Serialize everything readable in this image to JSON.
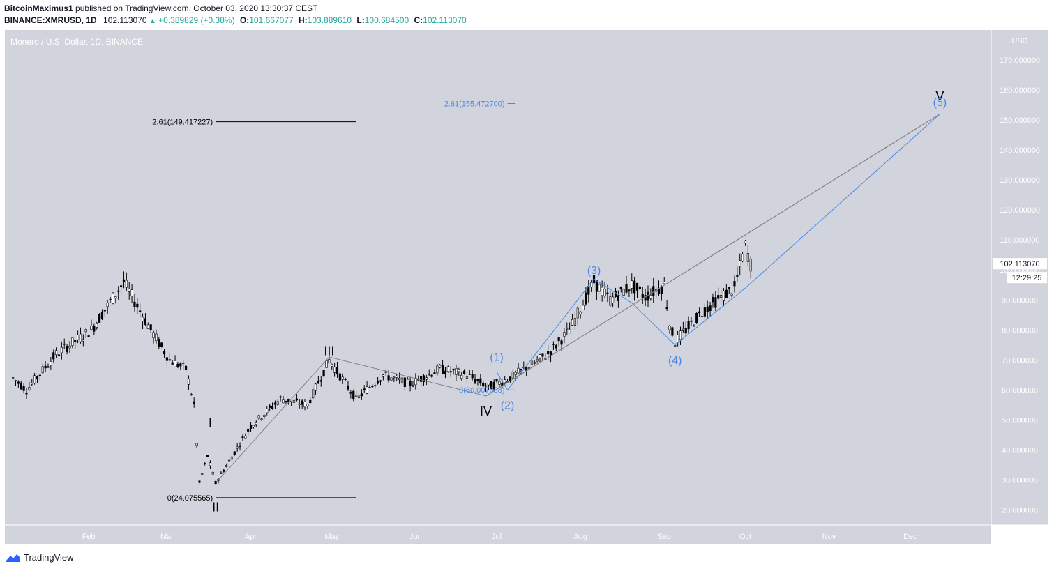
{
  "header": {
    "author": "BitcoinMaximus1",
    "published_text": "published on TradingView.com, October 03, 2020 13:30:37 CEST",
    "symbol": "BINANCE:XMRUSD, 1D",
    "last": "102.113070",
    "change": "+0.389829 (+0.38%)",
    "o_label": "O:",
    "o": "101.667077",
    "h_label": "H:",
    "h": "103.889610",
    "l_label": "L:",
    "l": "100.684500",
    "c_label": "C:",
    "c": "102.113070"
  },
  "chart": {
    "title": "Monero / U.S. Dollar, 1D, BINANCE",
    "currency": "USD",
    "price_label": "102.113070",
    "countdown": "12:29:25"
  },
  "footer": {
    "brand": "TradingView"
  },
  "colors": {
    "plot_bg": "#d1d4dc",
    "candle": "#000000",
    "blue": "#4a86e8",
    "grey": "#808080"
  },
  "chart_data": {
    "type": "candlestick",
    "y_axis": {
      "min": 15,
      "max": 180,
      "ticks": [
        "170.000000",
        "160.000000",
        "150.000000",
        "140.000000",
        "130.000000",
        "120.000000",
        "110.000000",
        "100.000000",
        "90.000000",
        "80.000000",
        "70.000000",
        "60.000000",
        "50.000000",
        "40.000000",
        "30.000000",
        "20.000000"
      ],
      "tick_values": [
        170,
        160,
        150,
        140,
        130,
        120,
        110,
        100,
        90,
        80,
        70,
        60,
        50,
        40,
        30,
        20
      ]
    },
    "x_axis": {
      "labels": [
        "Feb",
        "Mar",
        "Apr",
        "May",
        "Jun",
        "Jul",
        "Aug",
        "Sep",
        "Oct",
        "Nov",
        "Dec"
      ],
      "dates": [
        "2020-02-01",
        "2020-03-01",
        "2020-04-01",
        "2020-05-01",
        "2020-06-01",
        "2020-07-01",
        "2020-08-01",
        "2020-09-01",
        "2020-10-01",
        "2020-11-01",
        "2020-12-01"
      ]
    },
    "price_anchors": [
      {
        "date": "2020-01-04",
        "price": 64
      },
      {
        "date": "2020-01-09",
        "price": 60
      },
      {
        "date": "2020-01-20",
        "price": 72
      },
      {
        "date": "2020-02-02",
        "price": 80
      },
      {
        "date": "2020-02-14",
        "price": 96
      },
      {
        "date": "2020-02-24",
        "price": 80
      },
      {
        "date": "2020-03-02",
        "price": 70
      },
      {
        "date": "2020-03-08",
        "price": 67
      },
      {
        "date": "2020-03-11",
        "price": 55
      },
      {
        "date": "2020-03-13",
        "price": 29
      },
      {
        "date": "2020-03-16",
        "price": 38
      },
      {
        "date": "2020-03-19",
        "price": 29
      },
      {
        "date": "2020-04-01",
        "price": 48
      },
      {
        "date": "2020-04-12",
        "price": 57
      },
      {
        "date": "2020-04-22",
        "price": 55
      },
      {
        "date": "2020-04-30",
        "price": 70
      },
      {
        "date": "2020-05-10",
        "price": 57
      },
      {
        "date": "2020-05-20",
        "price": 65
      },
      {
        "date": "2020-05-30",
        "price": 62
      },
      {
        "date": "2020-06-10",
        "price": 67
      },
      {
        "date": "2020-06-20",
        "price": 65
      },
      {
        "date": "2020-06-28",
        "price": 61
      },
      {
        "date": "2020-07-06",
        "price": 64
      },
      {
        "date": "2020-07-20",
        "price": 72
      },
      {
        "date": "2020-07-28",
        "price": 80
      },
      {
        "date": "2020-08-06",
        "price": 96
      },
      {
        "date": "2020-08-12",
        "price": 90
      },
      {
        "date": "2020-08-20",
        "price": 95
      },
      {
        "date": "2020-08-25",
        "price": 91
      },
      {
        "date": "2020-09-01",
        "price": 95
      },
      {
        "date": "2020-09-03",
        "price": 82
      },
      {
        "date": "2020-09-05",
        "price": 76
      },
      {
        "date": "2020-09-15",
        "price": 86
      },
      {
        "date": "2020-09-22",
        "price": 91
      },
      {
        "date": "2020-09-27",
        "price": 94
      },
      {
        "date": "2020-10-01",
        "price": 108
      },
      {
        "date": "2020-10-03",
        "price": 102
      }
    ],
    "lines": [
      {
        "name": "fib-black-level-261",
        "color": "#000000",
        "points": [
          {
            "date": "2020-03-19",
            "price": 149.417227
          },
          {
            "date": "2020-05-10",
            "price": 149.417227
          }
        ]
      },
      {
        "name": "fib-black-level-0",
        "color": "#000000",
        "points": [
          {
            "date": "2020-03-19",
            "price": 24.075565
          },
          {
            "date": "2020-05-10",
            "price": 24.075565
          }
        ]
      },
      {
        "name": "fib-blue-level-261",
        "color": "#4a86e8",
        "points": [
          {
            "date": "2020-07-05",
            "price": 155.4727
          },
          {
            "date": "2020-07-08",
            "price": 155.4727
          }
        ]
      },
      {
        "name": "fib-blue-level-0",
        "color": "#4a86e8",
        "points": [
          {
            "date": "2020-07-05",
            "price": 60.007638
          },
          {
            "date": "2020-07-08",
            "price": 60.007638
          }
        ]
      },
      {
        "name": "wave-path-grey-1",
        "color": "#808080",
        "points": [
          {
            "date": "2020-03-19",
            "price": 29
          },
          {
            "date": "2020-04-30",
            "price": 71
          },
          {
            "date": "2020-06-27",
            "price": 58
          },
          {
            "date": "2020-12-12",
            "price": 152
          }
        ]
      },
      {
        "name": "wave-path-grey-2",
        "color": "#808080",
        "points": [
          {
            "date": "2020-06-27",
            "price": 58
          },
          {
            "date": "2020-12-12",
            "price": 152
          }
        ]
      },
      {
        "name": "wave-path-blue",
        "color": "#4a86e8",
        "points": [
          {
            "date": "2020-07-01",
            "price": 66
          },
          {
            "date": "2020-07-05",
            "price": 60
          },
          {
            "date": "2020-08-06",
            "price": 97
          },
          {
            "date": "2020-08-20",
            "price": 89
          },
          {
            "date": "2020-09-05",
            "price": 75
          },
          {
            "date": "2020-10-01",
            "price": 94
          },
          {
            "date": "2020-12-12",
            "price": 152
          }
        ]
      }
    ],
    "annotations": [
      {
        "text": "2.61(149.417227)",
        "date": "2020-03-19",
        "price": 149.417227,
        "color": "#000000",
        "size": 11,
        "anchor": "end",
        "dx": -4
      },
      {
        "text": "0(24.075565)",
        "date": "2020-03-19",
        "price": 24.075565,
        "color": "#000000",
        "size": 11,
        "anchor": "end",
        "dx": -4
      },
      {
        "text": "2.61(155.472700)",
        "date": "2020-07-05",
        "price": 155.4727,
        "color": "#4a86e8",
        "size": 11,
        "anchor": "end",
        "dx": -4
      },
      {
        "text": "0(60.007638)",
        "date": "2020-07-05",
        "price": 60.007638,
        "color": "#4a86e8",
        "size": 11,
        "anchor": "end",
        "dx": -4
      },
      {
        "text": "I",
        "date": "2020-03-17",
        "price": 49,
        "color": "#000000",
        "size": 18,
        "anchor": "middle"
      },
      {
        "text": "II",
        "date": "2020-03-19",
        "price": 21,
        "color": "#000000",
        "size": 18,
        "anchor": "middle"
      },
      {
        "text": "III",
        "date": "2020-04-30",
        "price": 73,
        "color": "#000000",
        "size": 18,
        "anchor": "middle"
      },
      {
        "text": "IV",
        "date": "2020-06-27",
        "price": 53,
        "color": "#000000",
        "size": 18,
        "anchor": "middle"
      },
      {
        "text": "V",
        "date": "2020-12-12",
        "price": 158,
        "color": "#000000",
        "size": 18,
        "anchor": "middle"
      },
      {
        "text": "(1)",
        "date": "2020-07-01",
        "price": 71,
        "color": "#4a86e8",
        "size": 16,
        "anchor": "middle"
      },
      {
        "text": "(2)",
        "date": "2020-07-05",
        "price": 55,
        "color": "#4a86e8",
        "size": 16,
        "anchor": "middle"
      },
      {
        "text": "(3)",
        "date": "2020-08-06",
        "price": 100,
        "color": "#4a86e8",
        "size": 16,
        "anchor": "middle"
      },
      {
        "text": "(4)",
        "date": "2020-09-05",
        "price": 70,
        "color": "#4a86e8",
        "size": 16,
        "anchor": "middle"
      },
      {
        "text": "(5)",
        "date": "2020-12-12",
        "price": 156,
        "color": "#4a86e8",
        "size": 16,
        "anchor": "middle"
      }
    ]
  }
}
